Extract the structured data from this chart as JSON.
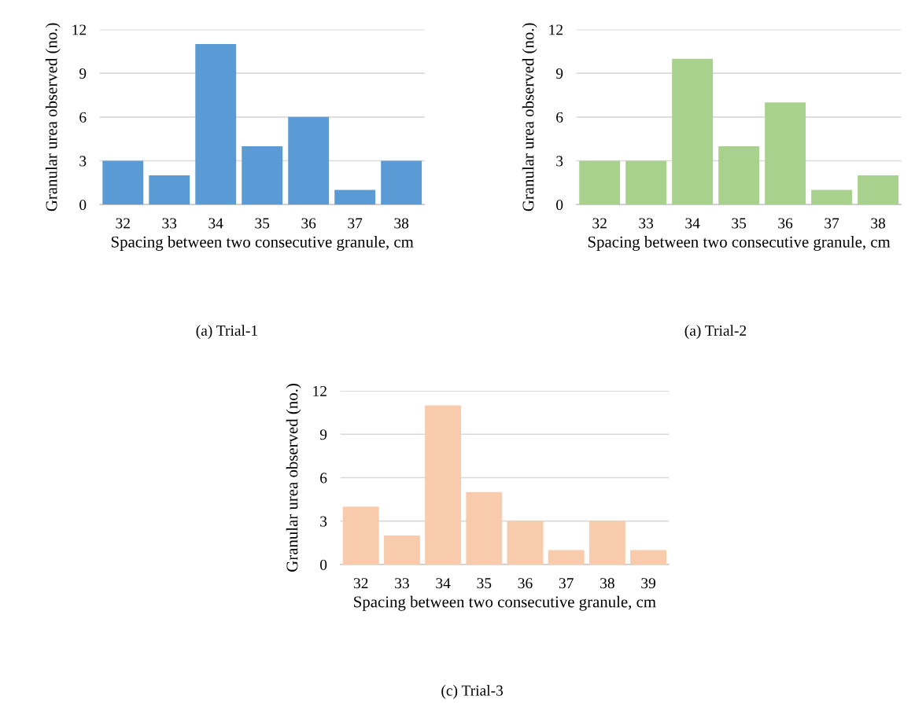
{
  "chart_data": [
    {
      "type": "bar",
      "categories": [
        "32",
        "33",
        "34",
        "35",
        "36",
        "37",
        "38"
      ],
      "values": [
        3,
        2,
        11,
        4,
        6,
        1,
        3
      ],
      "color": "#5b9bd5",
      "xlabel": "Spacing between two consecutive granule, cm",
      "ylabel": "Granular urea observed (no.)",
      "ylim": [
        0,
        12
      ],
      "yticks": [
        0,
        3,
        6,
        9,
        12
      ],
      "grid": "y",
      "annotations": [
        "(a) Trial-1"
      ]
    },
    {
      "type": "bar",
      "categories": [
        "32",
        "33",
        "34",
        "35",
        "36",
        "37",
        "38"
      ],
      "values": [
        3,
        3,
        10,
        4,
        7,
        1,
        2
      ],
      "color": "#a9d18e",
      "xlabel": "Spacing between two consecutive granule, cm",
      "ylabel": "Granular urea observed (no.)",
      "ylim": [
        0,
        12
      ],
      "yticks": [
        0,
        3,
        6,
        9,
        12
      ],
      "grid": "y",
      "annotations": [
        "(a) Trial-2"
      ]
    },
    {
      "type": "bar",
      "categories": [
        "32",
        "33",
        "34",
        "35",
        "36",
        "37",
        "38",
        "39"
      ],
      "values": [
        4,
        2,
        11,
        5,
        3,
        1,
        3,
        1
      ],
      "color": "#f8cbad",
      "xlabel": "Spacing between two consecutive granule, cm",
      "ylabel": "Granular urea observed (no.)",
      "ylim": [
        0,
        12
      ],
      "yticks": [
        0,
        3,
        6,
        9,
        12
      ],
      "grid": "y",
      "annotations": [
        "(c) Trial-3"
      ]
    }
  ]
}
